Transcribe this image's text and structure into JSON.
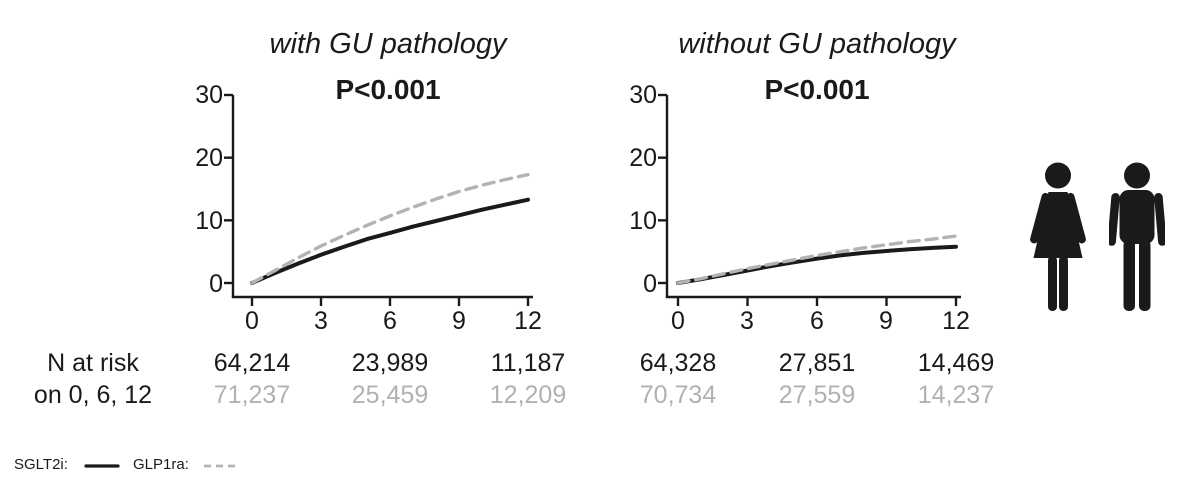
{
  "figure": {
    "background": "#ffffff",
    "accent_black": "#1a1a1a",
    "accent_gray": "#b3b3b3"
  },
  "chart_data": [
    {
      "type": "line",
      "title": "with GU pathology",
      "p_value": "P<0.001",
      "xlim": [
        0,
        12
      ],
      "ylim": [
        0,
        30
      ],
      "xticks": [
        0,
        3,
        6,
        9,
        12
      ],
      "yticks": [
        0,
        10,
        20,
        30
      ],
      "grid": false,
      "x": [
        0,
        1,
        2,
        3,
        4,
        5,
        6,
        7,
        8,
        9,
        10,
        11,
        12
      ],
      "series": [
        {
          "name": "SGLT2i",
          "line_style": "solid",
          "color": "#1a1a1a",
          "values": [
            0,
            1.6,
            3.1,
            4.5,
            5.8,
            7.0,
            8.0,
            9.0,
            9.9,
            10.8,
            11.7,
            12.5,
            13.3
          ]
        },
        {
          "name": "GLP1ra",
          "line_style": "dashed",
          "color": "#b3b3b3",
          "values": [
            0,
            2.0,
            4.0,
            5.9,
            7.6,
            9.2,
            10.7,
            12.1,
            13.4,
            14.6,
            15.6,
            16.5,
            17.3
          ]
        }
      ],
      "n_at_risk": {
        "times": [
          0,
          6,
          12
        ],
        "rows": [
          {
            "name": "SGLT2i",
            "color": "#1a1a1a",
            "values": [
              "64,214",
              "23,989",
              "11,187"
            ]
          },
          {
            "name": "GLP1ra",
            "color": "#b1b1b1",
            "values": [
              "71,237",
              "25,459",
              "12,209"
            ]
          }
        ]
      }
    },
    {
      "type": "line",
      "title": "without GU pathology",
      "p_value": "P<0.001",
      "xlim": [
        0,
        12
      ],
      "ylim": [
        0,
        30
      ],
      "xticks": [
        0,
        3,
        6,
        9,
        12
      ],
      "yticks": [
        0,
        10,
        20,
        30
      ],
      "grid": false,
      "x": [
        0,
        1,
        2,
        3,
        4,
        5,
        6,
        7,
        8,
        9,
        10,
        11,
        12
      ],
      "series": [
        {
          "name": "SGLT2i",
          "line_style": "solid",
          "color": "#1a1a1a",
          "values": [
            0,
            0.6,
            1.3,
            2.0,
            2.7,
            3.3,
            3.9,
            4.4,
            4.8,
            5.1,
            5.4,
            5.6,
            5.8
          ]
        },
        {
          "name": "GLP1ra",
          "line_style": "dashed",
          "color": "#b3b3b3",
          "values": [
            0,
            0.7,
            1.5,
            2.3,
            3.0,
            3.7,
            4.4,
            5.0,
            5.6,
            6.1,
            6.6,
            7.0,
            7.5
          ]
        }
      ],
      "n_at_risk": {
        "times": [
          0,
          6,
          12
        ],
        "rows": [
          {
            "name": "SGLT2i",
            "color": "#1a1a1a",
            "values": [
              "64,328",
              "27,851",
              "14,469"
            ]
          },
          {
            "name": "GLP1ra",
            "color": "#b1b1b1",
            "values": [
              "70,734",
              "27,559",
              "14,237"
            ]
          }
        ]
      }
    }
  ],
  "n_at_risk_label": {
    "line1": "N at risk",
    "line2": "on 0, 6, 12"
  },
  "legend": {
    "items": [
      {
        "label": "SGLT2i:",
        "swatch": "solid-line",
        "color": "#1a1a1a"
      },
      {
        "label": "GLP1ra:",
        "swatch": "dashed-line",
        "color": "#b3b3b3"
      }
    ]
  },
  "icons": [
    {
      "name": "woman-icon",
      "color": "#1a1a1a"
    },
    {
      "name": "man-icon",
      "color": "#1a1a1a"
    }
  ]
}
